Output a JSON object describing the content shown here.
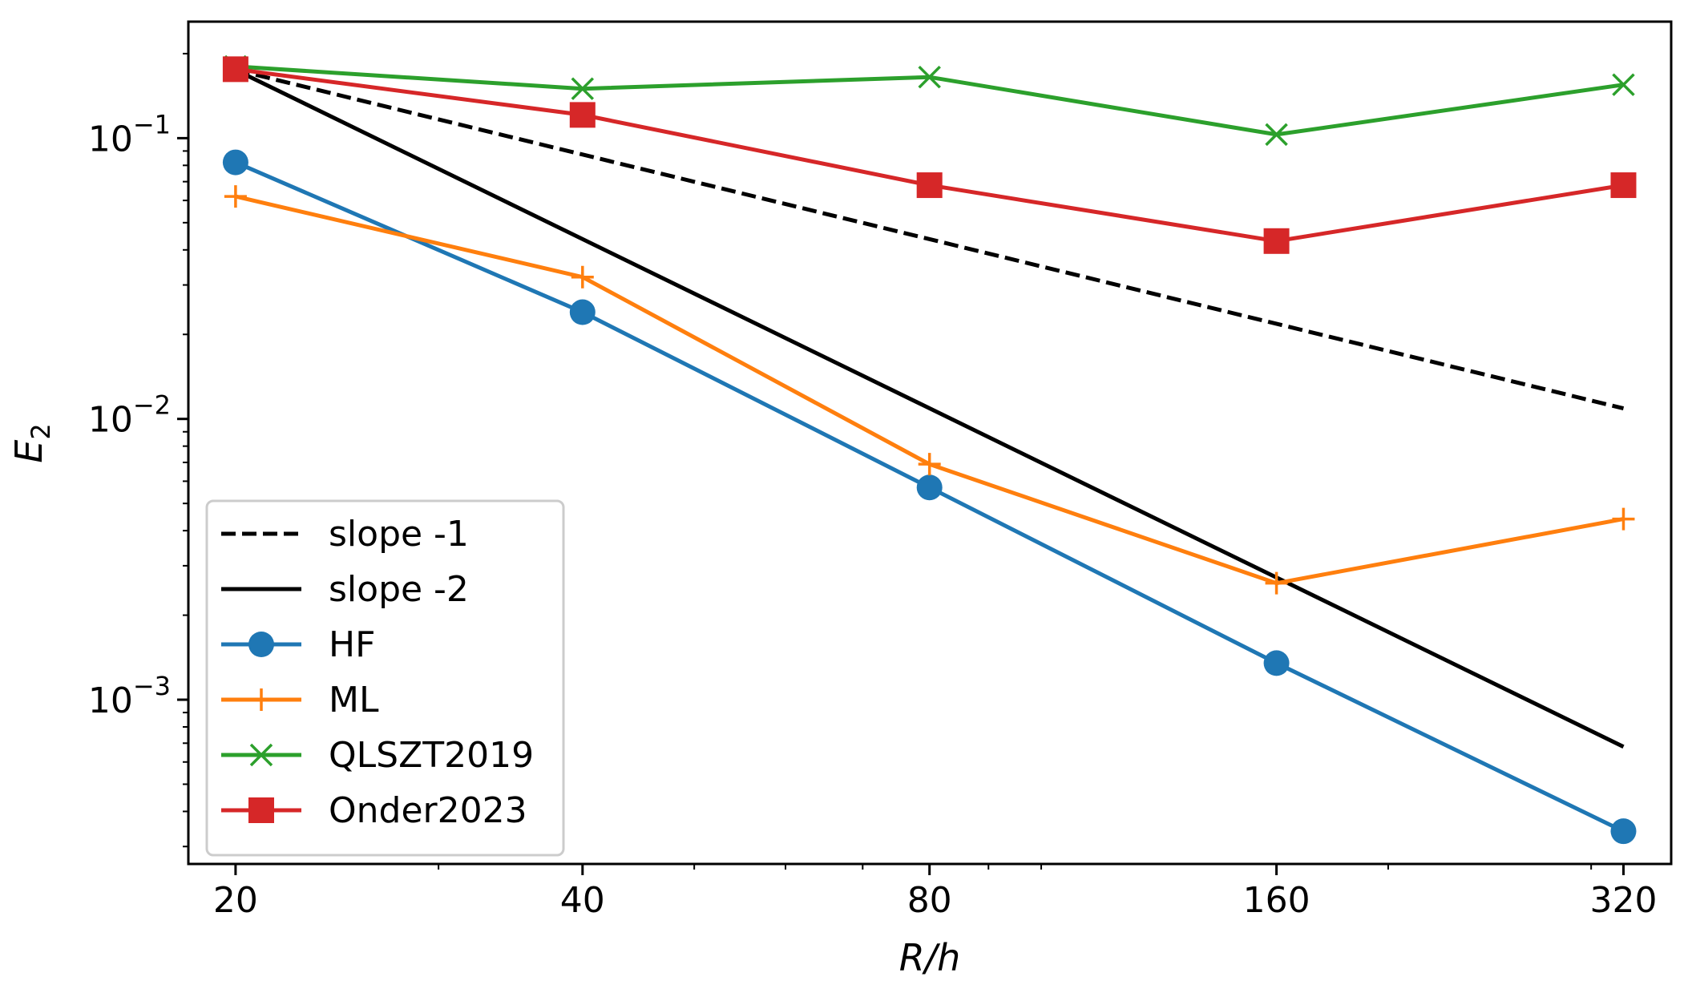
{
  "chart_data": {
    "type": "line",
    "xscale": "log",
    "yscale": "log",
    "xlabel": "R/h",
    "ylabel": "E2",
    "ylabel_main": "E",
    "ylabel_sub": "2",
    "x_ticks": [
      20,
      40,
      80,
      160,
      320
    ],
    "x_tick_labels": [
      "20",
      "40",
      "80",
      "160",
      "320"
    ],
    "y_ticks": [
      0.001,
      0.01,
      0.1
    ],
    "y_tick_labels": [
      {
        "base": "10",
        "exp": "−3"
      },
      {
        "base": "10",
        "exp": "−2"
      },
      {
        "base": "10",
        "exp": "−1"
      }
    ],
    "xlim": [
      18.2,
      352
    ],
    "ylim": [
      0.00026,
      0.26
    ],
    "grid": false,
    "legend_position": "lower-left",
    "series": [
      {
        "name": "slope -1",
        "color": "#000000",
        "dash": "dashed",
        "marker": "none",
        "x": [
          20,
          320
        ],
        "y": [
          0.175,
          0.0109
        ]
      },
      {
        "name": "slope -2",
        "color": "#000000",
        "dash": "solid",
        "marker": "none",
        "x": [
          20,
          320
        ],
        "y": [
          0.175,
          0.00068
        ]
      },
      {
        "name": "HF",
        "color": "#1f77b4",
        "dash": "solid",
        "marker": "circle",
        "x": [
          20,
          40,
          80,
          160,
          320
        ],
        "y": [
          0.082,
          0.024,
          0.0057,
          0.00135,
          0.00034
        ]
      },
      {
        "name": "ML",
        "color": "#ff7f0e",
        "dash": "solid",
        "marker": "plus",
        "x": [
          20,
          40,
          80,
          160,
          320
        ],
        "y": [
          0.062,
          0.032,
          0.0069,
          0.0026,
          0.0044
        ]
      },
      {
        "name": "QLSZT2019",
        "color": "#2ca02c",
        "dash": "solid",
        "marker": "x",
        "x": [
          20,
          40,
          80,
          160,
          320
        ],
        "y": [
          0.18,
          0.15,
          0.165,
          0.103,
          0.155
        ]
      },
      {
        "name": "Onder2023",
        "color": "#d62728",
        "dash": "solid",
        "marker": "square",
        "x": [
          20,
          40,
          80,
          160,
          320
        ],
        "y": [
          0.176,
          0.121,
          0.068,
          0.043,
          0.068
        ]
      }
    ]
  }
}
